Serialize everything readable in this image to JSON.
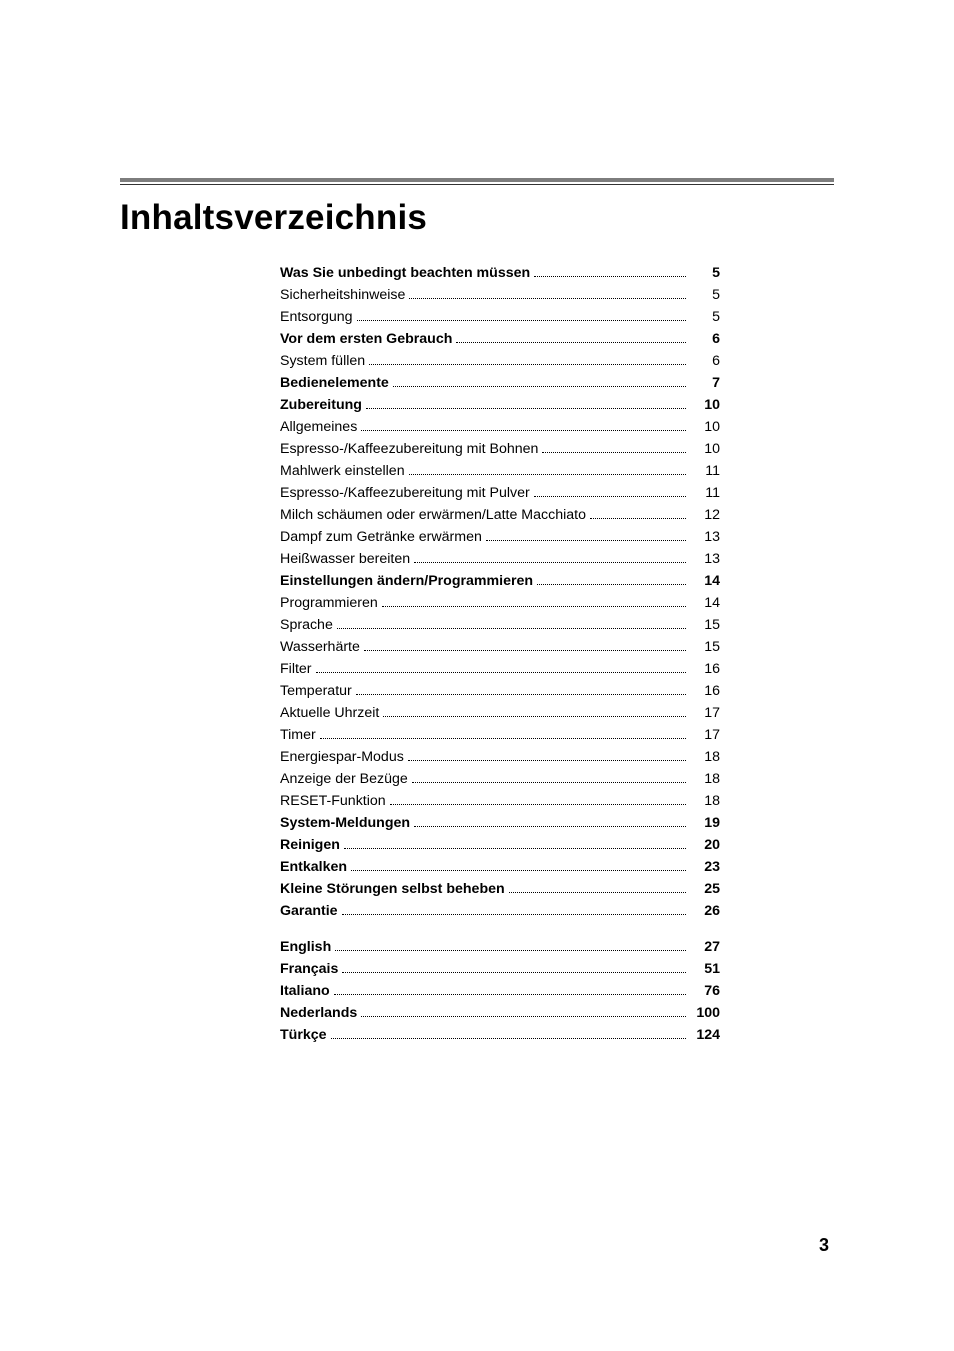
{
  "title": "Inhaltsverzeichnis",
  "pageNumber": "3",
  "toc": {
    "group1": [
      {
        "label": "Was Sie unbedingt beachten müssen",
        "page": "5",
        "bold": true
      },
      {
        "label": "Sicherheitshinweise",
        "page": "5",
        "bold": false
      },
      {
        "label": "Entsorgung",
        "page": "5",
        "bold": false
      },
      {
        "label": "Vor dem ersten Gebrauch",
        "page": "6",
        "bold": true
      },
      {
        "label": "System füllen",
        "page": "6",
        "bold": false
      },
      {
        "label": "Bedienelemente",
        "page": "7",
        "bold": true
      },
      {
        "label": "Zubereitung",
        "page": "10",
        "bold": true
      },
      {
        "label": "Allgemeines",
        "page": "10",
        "bold": false
      },
      {
        "label": "Espresso-/Kaffeezubereitung mit Bohnen",
        "page": "10",
        "bold": false
      },
      {
        "label": "Mahlwerk einstellen",
        "page": "11",
        "bold": false
      },
      {
        "label": "Espresso-/Kaffeezubereitung mit Pulver",
        "page": "11",
        "bold": false
      },
      {
        "label": "Milch schäumen oder erwärmen/Latte Macchiato",
        "page": "12",
        "bold": false
      },
      {
        "label": "Dampf zum Getränke erwärmen",
        "page": "13",
        "bold": false
      },
      {
        "label": "Heißwasser bereiten",
        "page": "13",
        "bold": false
      },
      {
        "label": "Einstellungen ändern/Programmieren",
        "page": "14",
        "bold": true
      },
      {
        "label": "Programmieren",
        "page": "14",
        "bold": false
      },
      {
        "label": "Sprache",
        "page": "15",
        "bold": false
      },
      {
        "label": "Wasserhärte",
        "page": "15",
        "bold": false
      },
      {
        "label": "Filter",
        "page": "16",
        "bold": false
      },
      {
        "label": "Temperatur",
        "page": "16",
        "bold": false
      },
      {
        "label": "Aktuelle Uhrzeit",
        "page": "17",
        "bold": false
      },
      {
        "label": "Timer",
        "page": "17",
        "bold": false
      },
      {
        "label": "Energiespar-Modus",
        "page": "18",
        "bold": false
      },
      {
        "label": "Anzeige der Bezüge",
        "page": "18",
        "bold": false
      },
      {
        "label": "RESET-Funktion",
        "page": "18",
        "bold": false
      },
      {
        "label": "System-Meldungen",
        "page": "19",
        "bold": true
      },
      {
        "label": "Reinigen",
        "page": "20",
        "bold": true
      },
      {
        "label": "Entkalken",
        "page": "23",
        "bold": true
      },
      {
        "label": "Kleine Störungen selbst beheben",
        "page": "25",
        "bold": true
      },
      {
        "label": "Garantie",
        "page": "26",
        "bold": true
      }
    ],
    "group2": [
      {
        "label": "English",
        "page": "27",
        "bold": true
      },
      {
        "label": "Français",
        "page": "51",
        "bold": true
      },
      {
        "label": "Italiano",
        "page": "76",
        "bold": true
      },
      {
        "label": "Nederlands",
        "page": "100",
        "bold": true
      },
      {
        "label": "Türkçe",
        "page": "124",
        "bold": true
      }
    ]
  },
  "style": {
    "page_bg": "#ffffff",
    "text_color": "#000000",
    "rule_color": "#7d7d7d",
    "title_fontsize": 35,
    "toc_fontsize": 14.2,
    "page_number_fontsize": 18
  }
}
